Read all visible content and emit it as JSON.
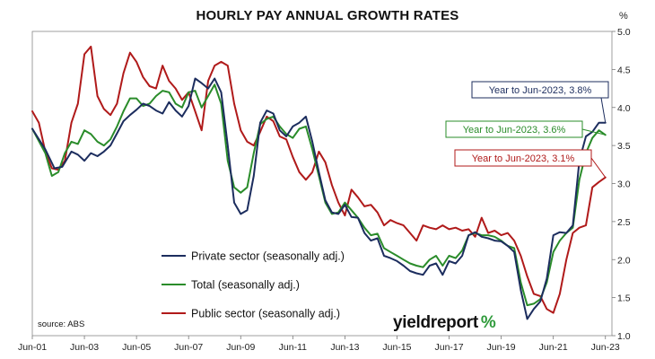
{
  "chart_data": {
    "type": "line",
    "title": "HOURLY PAY ANNUAL GROWTH RATES",
    "unit": "%",
    "x_tick_labels": [
      "Jun-01",
      "Jun-03",
      "Jun-05",
      "Jun-07",
      "Jun-09",
      "Jun-11",
      "Jun-13",
      "Jun-15",
      "Jun-17",
      "Jun-19",
      "Jun-21",
      "Jun-23"
    ],
    "y_tick_labels": [
      "1.0",
      "1.5",
      "2.0",
      "2.5",
      "3.0",
      "3.5",
      "4.0",
      "4.5",
      "5.0"
    ],
    "ylim": [
      1.0,
      5.0
    ],
    "xlim": [
      2001.25,
      2023.5
    ],
    "grid": false,
    "legend_position": "bottom-left",
    "series": [
      {
        "name": "Private sector (seasonally adj.)",
        "color": "#1c2d5e",
        "points": [
          [
            2001.25,
            3.72
          ],
          [
            2001.75,
            3.45
          ],
          [
            2002.1,
            3.2
          ],
          [
            2002.4,
            3.22
          ],
          [
            2002.75,
            3.42
          ],
          [
            2003.0,
            3.38
          ],
          [
            2003.25,
            3.3
          ],
          [
            2003.5,
            3.4
          ],
          [
            2003.75,
            3.36
          ],
          [
            2004.0,
            3.42
          ],
          [
            2004.25,
            3.5
          ],
          [
            2004.5,
            3.66
          ],
          [
            2004.75,
            3.82
          ],
          [
            2005.0,
            3.9
          ],
          [
            2005.25,
            3.97
          ],
          [
            2005.5,
            4.05
          ],
          [
            2005.75,
            4.02
          ],
          [
            2006.0,
            3.96
          ],
          [
            2006.25,
            3.92
          ],
          [
            2006.5,
            4.07
          ],
          [
            2006.75,
            3.96
          ],
          [
            2007.0,
            3.88
          ],
          [
            2007.25,
            4.02
          ],
          [
            2007.5,
            4.38
          ],
          [
            2007.75,
            4.32
          ],
          [
            2008.0,
            4.25
          ],
          [
            2008.25,
            4.38
          ],
          [
            2008.5,
            4.2
          ],
          [
            2008.75,
            3.5
          ],
          [
            2009.0,
            2.75
          ],
          [
            2009.25,
            2.6
          ],
          [
            2009.5,
            2.65
          ],
          [
            2009.75,
            3.1
          ],
          [
            2010.0,
            3.8
          ],
          [
            2010.25,
            3.96
          ],
          [
            2010.5,
            3.92
          ],
          [
            2010.75,
            3.7
          ],
          [
            2011.0,
            3.62
          ],
          [
            2011.25,
            3.75
          ],
          [
            2011.5,
            3.8
          ],
          [
            2011.75,
            3.88
          ],
          [
            2012.0,
            3.55
          ],
          [
            2012.25,
            3.15
          ],
          [
            2012.5,
            2.78
          ],
          [
            2012.75,
            2.62
          ],
          [
            2013.0,
            2.6
          ],
          [
            2013.25,
            2.72
          ],
          [
            2013.5,
            2.56
          ],
          [
            2013.75,
            2.55
          ],
          [
            2014.0,
            2.35
          ],
          [
            2014.25,
            2.25
          ],
          [
            2014.5,
            2.28
          ],
          [
            2014.75,
            2.05
          ],
          [
            2015.0,
            2.02
          ],
          [
            2015.25,
            1.98
          ],
          [
            2015.5,
            1.92
          ],
          [
            2015.75,
            1.85
          ],
          [
            2016.0,
            1.82
          ],
          [
            2016.25,
            1.8
          ],
          [
            2016.5,
            1.92
          ],
          [
            2016.75,
            1.95
          ],
          [
            2017.0,
            1.8
          ],
          [
            2017.25,
            1.98
          ],
          [
            2017.5,
            1.95
          ],
          [
            2017.75,
            2.05
          ],
          [
            2018.0,
            2.32
          ],
          [
            2018.25,
            2.36
          ],
          [
            2018.5,
            2.3
          ],
          [
            2018.75,
            2.28
          ],
          [
            2019.0,
            2.25
          ],
          [
            2019.25,
            2.24
          ],
          [
            2019.5,
            2.18
          ],
          [
            2019.75,
            2.1
          ],
          [
            2020.0,
            1.6
          ],
          [
            2020.25,
            1.22
          ],
          [
            2020.5,
            1.35
          ],
          [
            2020.75,
            1.45
          ],
          [
            2021.0,
            1.75
          ],
          [
            2021.25,
            2.32
          ],
          [
            2021.5,
            2.36
          ],
          [
            2021.75,
            2.35
          ],
          [
            2022.0,
            2.45
          ],
          [
            2022.25,
            3.3
          ],
          [
            2022.5,
            3.62
          ],
          [
            2022.75,
            3.68
          ],
          [
            2023.0,
            3.8
          ],
          [
            2023.25,
            3.8
          ]
        ]
      },
      {
        "name": "Total (seasonally adj.)",
        "color": "#2a8c2a",
        "points": [
          [
            2001.25,
            3.72
          ],
          [
            2001.75,
            3.4
          ],
          [
            2002.0,
            3.1
          ],
          [
            2002.25,
            3.15
          ],
          [
            2002.5,
            3.4
          ],
          [
            2002.75,
            3.55
          ],
          [
            2003.0,
            3.52
          ],
          [
            2003.25,
            3.7
          ],
          [
            2003.5,
            3.65
          ],
          [
            2003.75,
            3.55
          ],
          [
            2004.0,
            3.5
          ],
          [
            2004.25,
            3.58
          ],
          [
            2004.5,
            3.75
          ],
          [
            2004.75,
            3.95
          ],
          [
            2005.0,
            4.12
          ],
          [
            2005.25,
            4.12
          ],
          [
            2005.5,
            4.02
          ],
          [
            2005.75,
            4.05
          ],
          [
            2006.0,
            4.15
          ],
          [
            2006.25,
            4.22
          ],
          [
            2006.5,
            4.2
          ],
          [
            2006.75,
            4.05
          ],
          [
            2007.0,
            4.0
          ],
          [
            2007.25,
            4.2
          ],
          [
            2007.5,
            4.22
          ],
          [
            2007.75,
            4.0
          ],
          [
            2008.0,
            4.15
          ],
          [
            2008.25,
            4.3
          ],
          [
            2008.5,
            4.05
          ],
          [
            2008.75,
            3.3
          ],
          [
            2009.0,
            2.95
          ],
          [
            2009.25,
            2.88
          ],
          [
            2009.5,
            2.95
          ],
          [
            2009.75,
            3.4
          ],
          [
            2010.0,
            3.78
          ],
          [
            2010.25,
            3.85
          ],
          [
            2010.5,
            3.88
          ],
          [
            2010.75,
            3.75
          ],
          [
            2011.0,
            3.65
          ],
          [
            2011.25,
            3.6
          ],
          [
            2011.5,
            3.72
          ],
          [
            2011.75,
            3.75
          ],
          [
            2012.0,
            3.45
          ],
          [
            2012.25,
            3.1
          ],
          [
            2012.5,
            2.75
          ],
          [
            2012.75,
            2.6
          ],
          [
            2013.0,
            2.62
          ],
          [
            2013.25,
            2.75
          ],
          [
            2013.5,
            2.65
          ],
          [
            2013.75,
            2.55
          ],
          [
            2014.0,
            2.42
          ],
          [
            2014.25,
            2.32
          ],
          [
            2014.5,
            2.34
          ],
          [
            2014.75,
            2.15
          ],
          [
            2015.0,
            2.1
          ],
          [
            2015.25,
            2.05
          ],
          [
            2015.5,
            2.0
          ],
          [
            2015.75,
            1.95
          ],
          [
            2016.0,
            1.92
          ],
          [
            2016.25,
            1.9
          ],
          [
            2016.5,
            2.0
          ],
          [
            2016.75,
            2.05
          ],
          [
            2017.0,
            1.92
          ],
          [
            2017.25,
            2.05
          ],
          [
            2017.5,
            2.02
          ],
          [
            2017.75,
            2.12
          ],
          [
            2018.0,
            2.32
          ],
          [
            2018.25,
            2.35
          ],
          [
            2018.5,
            2.32
          ],
          [
            2018.75,
            2.32
          ],
          [
            2019.0,
            2.3
          ],
          [
            2019.25,
            2.25
          ],
          [
            2019.5,
            2.18
          ],
          [
            2019.75,
            2.15
          ],
          [
            2020.0,
            1.7
          ],
          [
            2020.25,
            1.4
          ],
          [
            2020.5,
            1.42
          ],
          [
            2020.75,
            1.48
          ],
          [
            2021.0,
            1.7
          ],
          [
            2021.25,
            2.1
          ],
          [
            2021.5,
            2.25
          ],
          [
            2021.75,
            2.35
          ],
          [
            2022.0,
            2.42
          ],
          [
            2022.25,
            3.05
          ],
          [
            2022.5,
            3.4
          ],
          [
            2022.75,
            3.6
          ],
          [
            2023.0,
            3.7
          ],
          [
            2023.25,
            3.64
          ]
        ]
      },
      {
        "name": "Public sector (seasonally adj.)",
        "color": "#b01a1a",
        "points": [
          [
            2001.25,
            3.95
          ],
          [
            2001.5,
            3.8
          ],
          [
            2001.75,
            3.42
          ],
          [
            2002.0,
            3.2
          ],
          [
            2002.25,
            3.18
          ],
          [
            2002.5,
            3.3
          ],
          [
            2002.75,
            3.8
          ],
          [
            2003.0,
            4.05
          ],
          [
            2003.25,
            4.7
          ],
          [
            2003.5,
            4.8
          ],
          [
            2003.75,
            4.15
          ],
          [
            2004.0,
            3.98
          ],
          [
            2004.25,
            3.9
          ],
          [
            2004.5,
            4.05
          ],
          [
            2004.75,
            4.45
          ],
          [
            2005.0,
            4.72
          ],
          [
            2005.25,
            4.6
          ],
          [
            2005.5,
            4.4
          ],
          [
            2005.75,
            4.28
          ],
          [
            2006.0,
            4.25
          ],
          [
            2006.25,
            4.55
          ],
          [
            2006.5,
            4.35
          ],
          [
            2006.75,
            4.25
          ],
          [
            2007.0,
            4.1
          ],
          [
            2007.25,
            4.2
          ],
          [
            2007.5,
            3.95
          ],
          [
            2007.75,
            3.7
          ],
          [
            2008.0,
            4.35
          ],
          [
            2008.25,
            4.55
          ],
          [
            2008.5,
            4.6
          ],
          [
            2008.75,
            4.55
          ],
          [
            2009.0,
            4.05
          ],
          [
            2009.25,
            3.7
          ],
          [
            2009.5,
            3.55
          ],
          [
            2009.75,
            3.5
          ],
          [
            2010.0,
            3.68
          ],
          [
            2010.25,
            3.88
          ],
          [
            2010.5,
            3.82
          ],
          [
            2010.75,
            3.62
          ],
          [
            2011.0,
            3.58
          ],
          [
            2011.25,
            3.35
          ],
          [
            2011.5,
            3.15
          ],
          [
            2011.75,
            3.05
          ],
          [
            2012.0,
            3.15
          ],
          [
            2012.25,
            3.42
          ],
          [
            2012.5,
            3.28
          ],
          [
            2012.75,
            2.98
          ],
          [
            2013.0,
            2.75
          ],
          [
            2013.25,
            2.58
          ],
          [
            2013.5,
            2.92
          ],
          [
            2013.75,
            2.82
          ],
          [
            2014.0,
            2.7
          ],
          [
            2014.25,
            2.72
          ],
          [
            2014.5,
            2.62
          ],
          [
            2014.75,
            2.45
          ],
          [
            2015.0,
            2.52
          ],
          [
            2015.25,
            2.48
          ],
          [
            2015.5,
            2.45
          ],
          [
            2015.75,
            2.35
          ],
          [
            2016.0,
            2.25
          ],
          [
            2016.25,
            2.45
          ],
          [
            2016.5,
            2.42
          ],
          [
            2016.75,
            2.4
          ],
          [
            2017.0,
            2.45
          ],
          [
            2017.25,
            2.4
          ],
          [
            2017.5,
            2.42
          ],
          [
            2017.75,
            2.38
          ],
          [
            2018.0,
            2.4
          ],
          [
            2018.25,
            2.3
          ],
          [
            2018.5,
            2.55
          ],
          [
            2018.75,
            2.35
          ],
          [
            2019.0,
            2.38
          ],
          [
            2019.25,
            2.32
          ],
          [
            2019.5,
            2.35
          ],
          [
            2019.75,
            2.25
          ],
          [
            2020.0,
            2.05
          ],
          [
            2020.25,
            1.78
          ],
          [
            2020.5,
            1.55
          ],
          [
            2020.75,
            1.52
          ],
          [
            2021.0,
            1.35
          ],
          [
            2021.25,
            1.3
          ],
          [
            2021.5,
            1.55
          ],
          [
            2021.75,
            2.0
          ],
          [
            2022.0,
            2.35
          ],
          [
            2022.25,
            2.42
          ],
          [
            2022.5,
            2.45
          ],
          [
            2022.75,
            2.95
          ],
          [
            2023.0,
            3.02
          ],
          [
            2023.25,
            3.08
          ]
        ]
      }
    ],
    "legend": [
      {
        "label": "Private sector (seasonally adj.)",
        "color": "#1c2d5e"
      },
      {
        "label": "Total (seasonally adj.)",
        "color": "#2a8c2a"
      },
      {
        "label": "Public sector (seasonally adj.)",
        "color": "#b01a1a"
      }
    ],
    "annotations": [
      {
        "text": "Year to Jun-2023, 3.8%",
        "color": "#1c2d5e",
        "target": [
          2023.25,
          3.8
        ]
      },
      {
        "text": "Year to Jun-2023, 3.6%",
        "color": "#2a8c2a",
        "target": [
          2023.25,
          3.64
        ]
      },
      {
        "text": "Year to Jun-2023, 3.1%",
        "color": "#b01a1a",
        "target": [
          2023.25,
          3.08
        ]
      }
    ]
  },
  "source": "source: ABS",
  "brand": {
    "name": "yieldreport",
    "symbol": "%"
  }
}
